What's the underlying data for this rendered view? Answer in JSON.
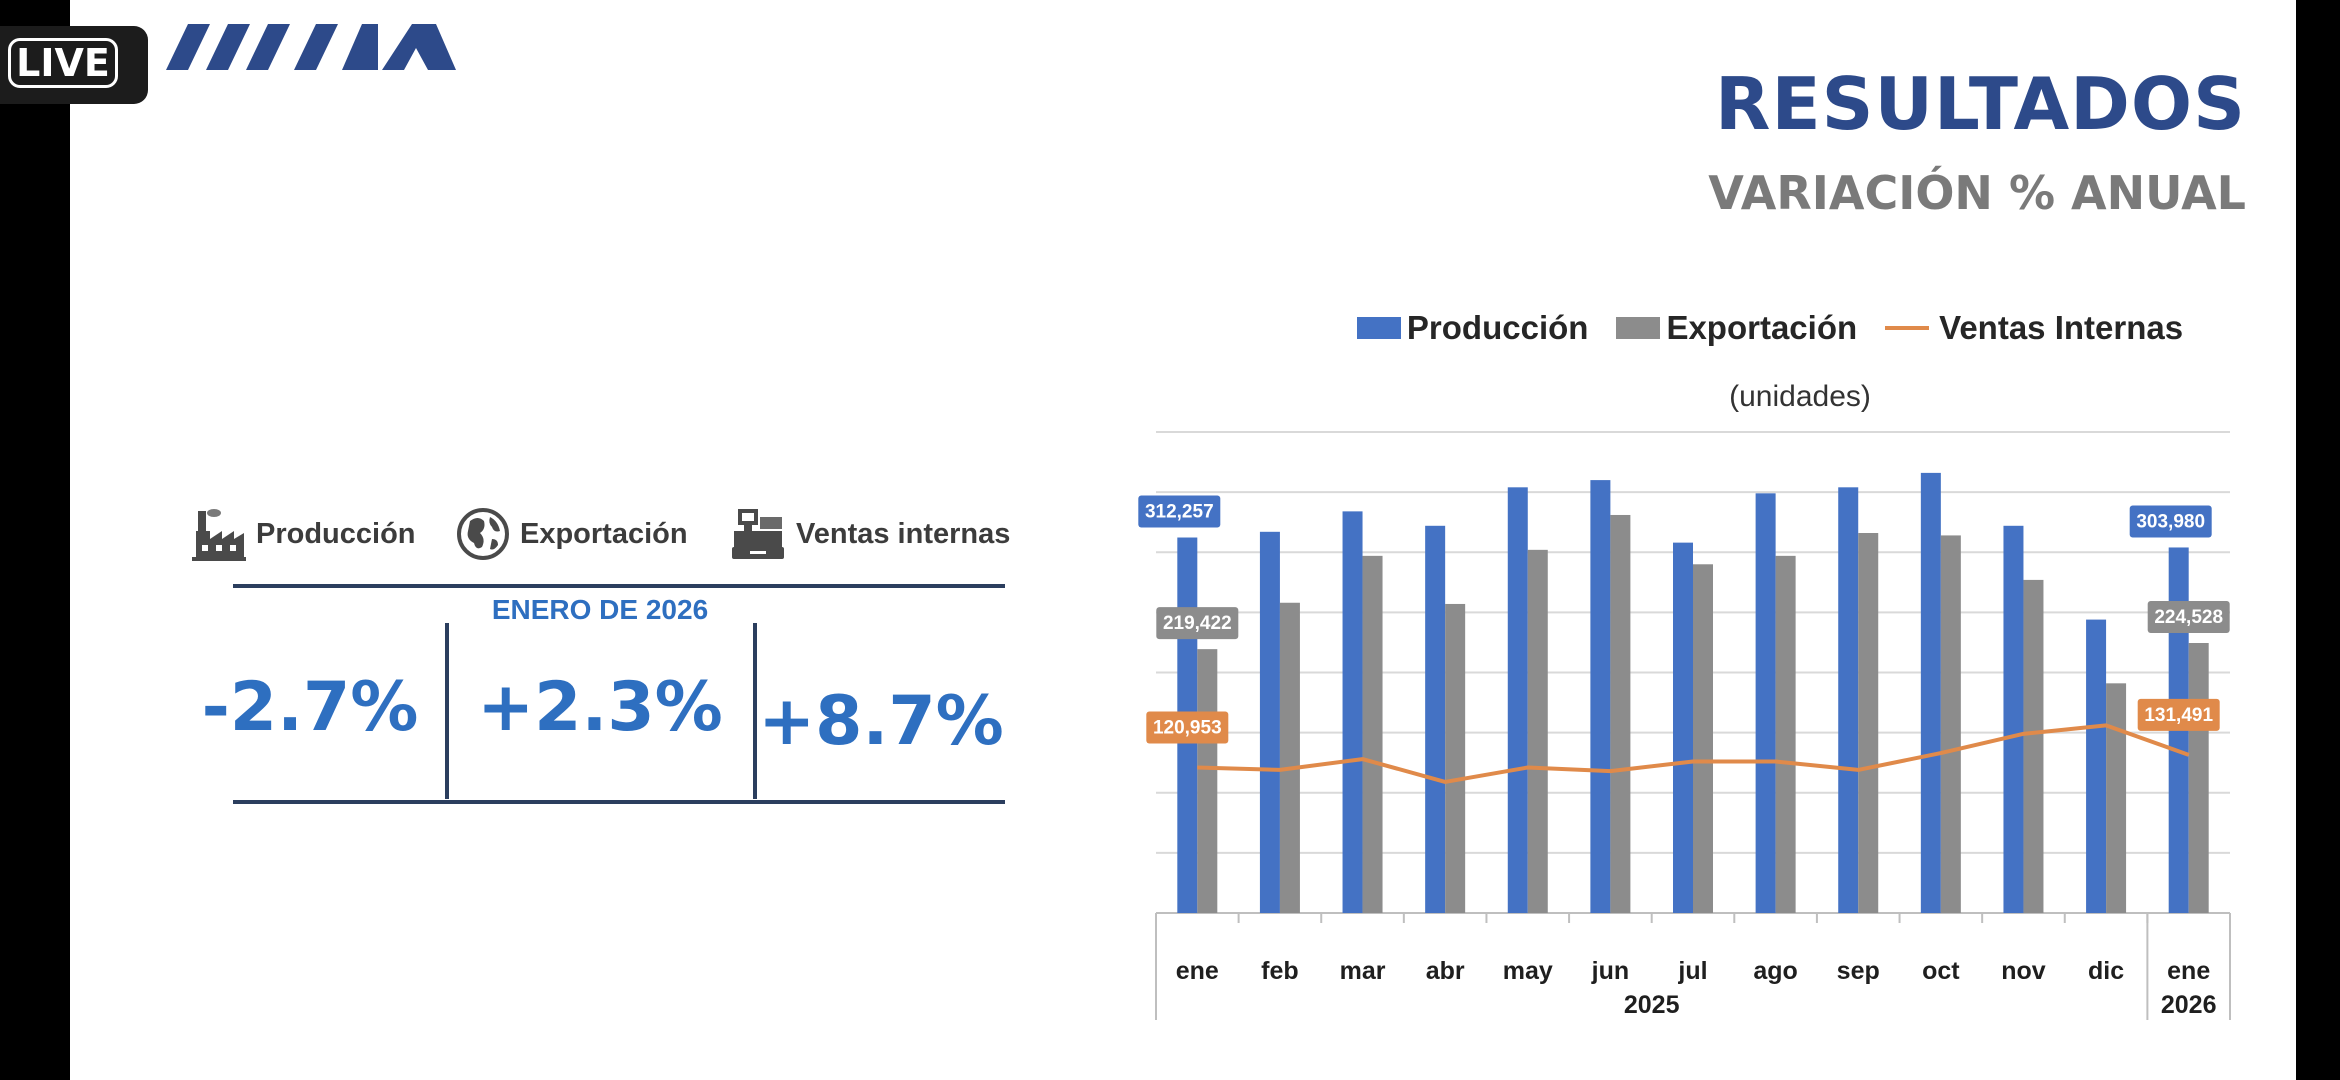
{
  "overlay": {
    "live_label": "LIVE"
  },
  "header": {
    "title": "RESULTADOS",
    "subtitle": "VARIACIÓN % ANUAL"
  },
  "kpis": {
    "period": "ENERO DE 2026",
    "items": [
      {
        "label": "Producción",
        "icon": "factory-icon",
        "value": "-2.7%"
      },
      {
        "label": "Exportación",
        "icon": "globe-icon",
        "value": "+2.3%"
      },
      {
        "label": "Ventas internas",
        "icon": "cash-register-icon",
        "value": "+8.7%"
      }
    ]
  },
  "colors": {
    "produccion": "#4472c4",
    "exportacion": "#8c8c8c",
    "ventas": "#e08a4a",
    "kpi_value": "#2e6fc0",
    "title": "#2d4a8a"
  },
  "chart_data": {
    "type": "bar",
    "title": "",
    "unit_label": "(unidades)",
    "categories": [
      "ene",
      "feb",
      "mar",
      "abr",
      "may",
      "jun",
      "jul",
      "ago",
      "sep",
      "oct",
      "nov",
      "dic",
      "ene"
    ],
    "year_groups": [
      {
        "label": "2025",
        "from": 0,
        "to": 11
      },
      {
        "label": "2026",
        "from": 12,
        "to": 12
      }
    ],
    "series": [
      {
        "name": "Producción",
        "kind": "bar",
        "color": "#4472c4",
        "values": [
          312257,
          317000,
          334000,
          322000,
          354000,
          360000,
          308000,
          349000,
          354000,
          366000,
          322000,
          244000,
          303980
        ]
      },
      {
        "name": "Exportación",
        "kind": "bar",
        "color": "#8c8c8c",
        "values": [
          219422,
          258000,
          297000,
          257000,
          302000,
          331000,
          290000,
          297000,
          316000,
          314000,
          277000,
          191000,
          224528
        ]
      },
      {
        "name": "Ventas Internas",
        "kind": "line",
        "color": "#e08a4a",
        "values": [
          120953,
          119000,
          128000,
          109000,
          121000,
          118000,
          126000,
          126000,
          119000,
          133000,
          149000,
          156000,
          131491
        ]
      }
    ],
    "data_labels": [
      {
        "series": 0,
        "index": 0,
        "text": "312,257"
      },
      {
        "series": 1,
        "index": 0,
        "text": "219,422"
      },
      {
        "series": 2,
        "index": 0,
        "text": "120,953"
      },
      {
        "series": 0,
        "index": 12,
        "text": "303,980"
      },
      {
        "series": 1,
        "index": 12,
        "text": "224,528"
      },
      {
        "series": 2,
        "index": 12,
        "text": "131,491"
      }
    ],
    "ylim": [
      0,
      400000
    ],
    "y_grid_step": 50000,
    "grid": true,
    "legend_position": "top"
  }
}
